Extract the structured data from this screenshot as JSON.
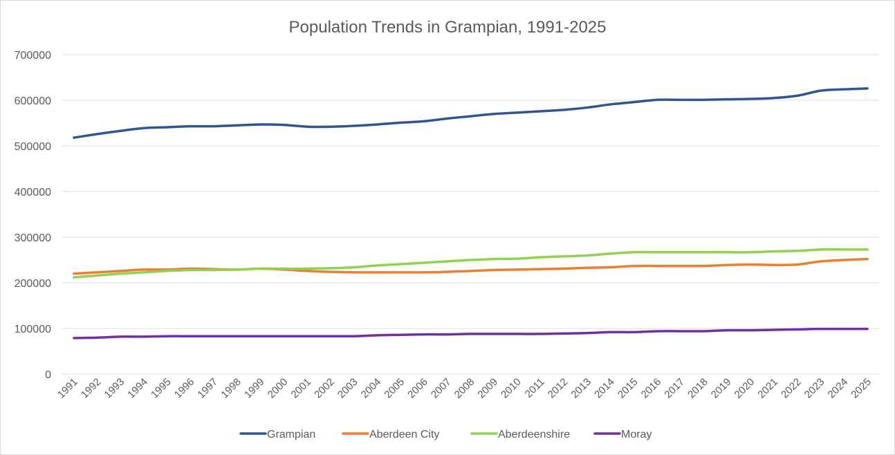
{
  "chart_data": {
    "type": "line",
    "title": "Population Trends in Grampian, 1991-2025",
    "xlabel": "",
    "ylabel": "",
    "ylim": [
      0,
      700000
    ],
    "yticks": [
      "0",
      "100000",
      "200000",
      "300000",
      "400000",
      "500000",
      "600000",
      "700000"
    ],
    "grid": true,
    "legend_position": "bottom",
    "categories": [
      "1991",
      "1992",
      "1993",
      "1994",
      "1995",
      "1996",
      "1997",
      "1998",
      "1999",
      "2000",
      "2001",
      "2002",
      "2003",
      "2004",
      "2005",
      "2006",
      "2007",
      "2008",
      "2009",
      "2010",
      "2011",
      "2012",
      "2013",
      "2014",
      "2015",
      "2016",
      "2017",
      "2018",
      "2019",
      "2020",
      "2021",
      "2022",
      "2023",
      "2024",
      "2025"
    ],
    "series": [
      {
        "name": "Grampian",
        "color": "#2f5597",
        "values": [
          518000,
          526000,
          533000,
          539000,
          541000,
          543000,
          543000,
          545000,
          547000,
          546000,
          542000,
          542000,
          544000,
          547000,
          551000,
          554000,
          560000,
          565000,
          570000,
          573000,
          576000,
          579000,
          584000,
          591000,
          596000,
          601000,
          601000,
          601000,
          602000,
          603000,
          605000,
          610000,
          621000,
          624000,
          626000
        ]
      },
      {
        "name": "Aberdeen City",
        "color": "#ed7d31",
        "values": [
          220000,
          223000,
          226000,
          229000,
          229000,
          231000,
          230000,
          229000,
          231000,
          229000,
          226000,
          224000,
          223000,
          223000,
          223000,
          223000,
          224000,
          226000,
          228000,
          229000,
          230000,
          231000,
          233000,
          234000,
          237000,
          237000,
          237000,
          237000,
          239000,
          240000,
          239000,
          240000,
          247000,
          250000,
          252000
        ]
      },
      {
        "name": "Aberdeenshire",
        "color": "#92d050",
        "values": [
          212000,
          216000,
          220000,
          223000,
          226000,
          228000,
          228000,
          229000,
          231000,
          231000,
          231000,
          232000,
          234000,
          238000,
          241000,
          244000,
          247000,
          250000,
          252000,
          253000,
          256000,
          258000,
          260000,
          264000,
          267000,
          267000,
          267000,
          267000,
          267000,
          267000,
          269000,
          270000,
          273000,
          273000,
          273000
        ]
      },
      {
        "name": "Moray",
        "color": "#7030a0",
        "values": [
          79000,
          80000,
          82000,
          82000,
          83000,
          83000,
          83000,
          83000,
          83000,
          83000,
          83000,
          83000,
          83000,
          85000,
          86000,
          87000,
          87000,
          88000,
          88000,
          88000,
          88000,
          89000,
          90000,
          92000,
          92000,
          94000,
          94000,
          94000,
          96000,
          96000,
          97000,
          98000,
          99000,
          99000,
          99000
        ]
      }
    ]
  }
}
